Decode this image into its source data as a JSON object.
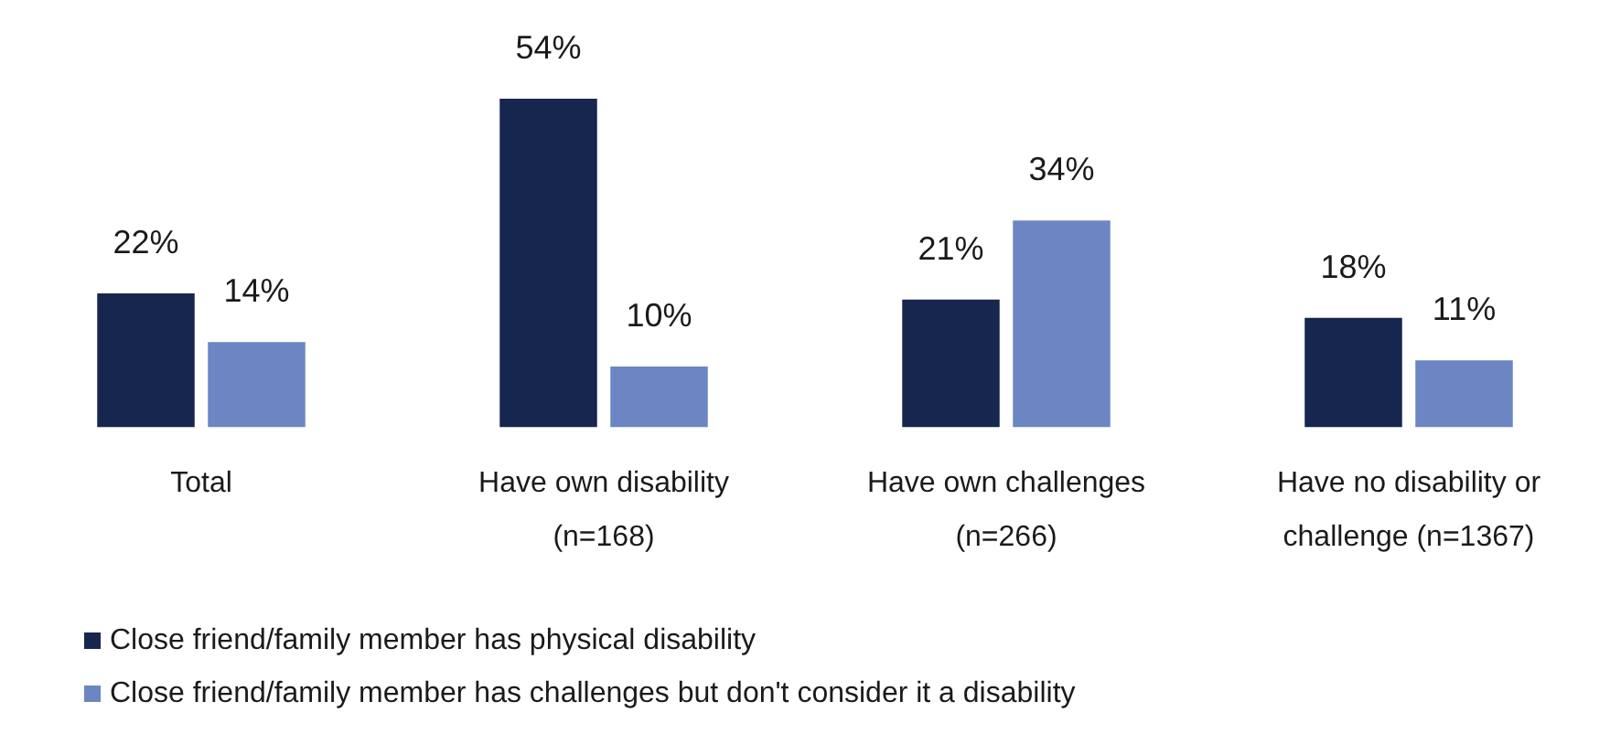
{
  "chart_data": {
    "type": "bar",
    "categories": [
      "Total",
      "Have own disability (n=168)",
      "Have own challenges (n=266)",
      "Have no disability or challenge (n=1367)"
    ],
    "series": [
      {
        "name": "Close friend/family member has physical disability",
        "color": "#17264f",
        "values": [
          22,
          54,
          21,
          18
        ],
        "value_labels": [
          "22%",
          "54%",
          "21%",
          "18%"
        ]
      },
      {
        "name": "Close friend/family member has challenges but don't consider it a disability",
        "color": "#6b86c2",
        "values": [
          14,
          10,
          34,
          11
        ],
        "value_labels": [
          "14%",
          "10%",
          "34%",
          "11%"
        ]
      }
    ],
    "tick_labels": "x",
    "legend": "bottom left"
  }
}
